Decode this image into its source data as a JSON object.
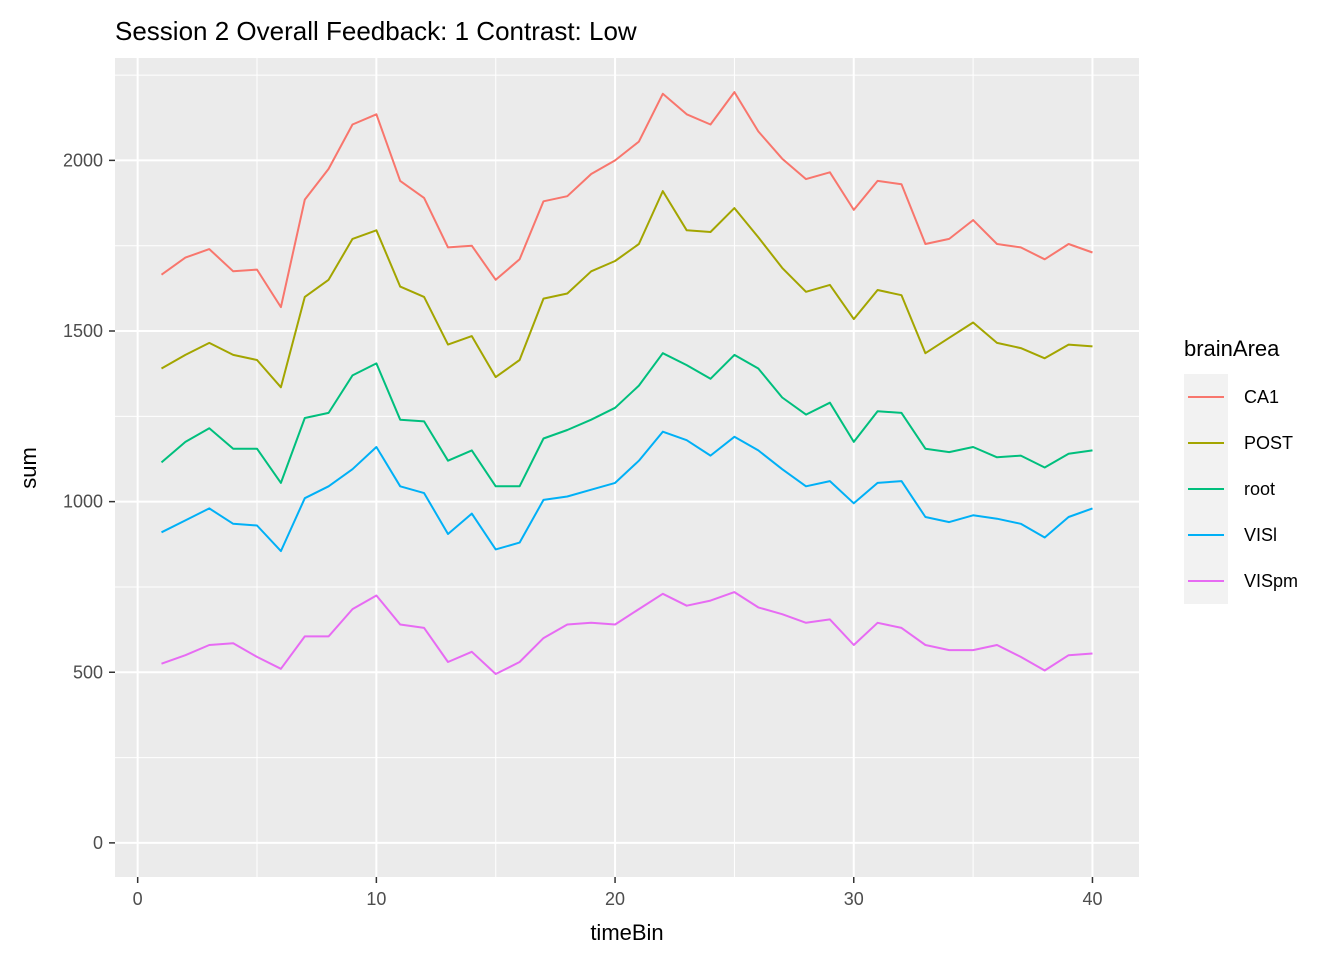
{
  "chart_data": {
    "type": "line",
    "title": "Session 2 Overall Feedback: 1 Contrast: Low",
    "xlabel": "timeBin",
    "ylabel": "sum",
    "xlim": [
      -0.95,
      41.95
    ],
    "ylim": [
      -100,
      2300
    ],
    "xticks": [
      0,
      10,
      20,
      30,
      40
    ],
    "yticks": [
      0,
      500,
      1000,
      1500,
      2000
    ],
    "grid": true,
    "legend": {
      "title": "brainArea",
      "position": "right"
    },
    "x": [
      1,
      2,
      3,
      4,
      5,
      6,
      7,
      8,
      9,
      10,
      11,
      12,
      13,
      14,
      15,
      16,
      17,
      18,
      19,
      20,
      21,
      22,
      23,
      24,
      25,
      26,
      27,
      28,
      29,
      30,
      31,
      32,
      33,
      34,
      35,
      36,
      37,
      38,
      39,
      40
    ],
    "series": [
      {
        "name": "CA1",
        "color": "#F8766D",
        "values": [
          1665,
          1715,
          1740,
          1675,
          1680,
          1570,
          1885,
          1975,
          2105,
          2135,
          1940,
          1890,
          1745,
          1750,
          1650,
          1710,
          1880,
          1895,
          1960,
          2000,
          2055,
          2195,
          2135,
          2105,
          2200,
          2085,
          2005,
          1945,
          1965,
          1855,
          1940,
          1930,
          1755,
          1770,
          1825,
          1755,
          1745,
          1710,
          1755,
          1730
        ]
      },
      {
        "name": "POST",
        "color": "#A3A500",
        "values": [
          1390,
          1430,
          1465,
          1430,
          1415,
          1335,
          1600,
          1650,
          1770,
          1795,
          1630,
          1600,
          1460,
          1485,
          1365,
          1415,
          1595,
          1610,
          1675,
          1705,
          1755,
          1910,
          1795,
          1790,
          1860,
          1775,
          1685,
          1615,
          1635,
          1535,
          1620,
          1605,
          1435,
          1480,
          1525,
          1465,
          1450,
          1420,
          1460,
          1455
        ]
      },
      {
        "name": "root",
        "color": "#00BF7D",
        "values": [
          1115,
          1175,
          1215,
          1155,
          1155,
          1055,
          1245,
          1260,
          1370,
          1405,
          1240,
          1235,
          1120,
          1150,
          1045,
          1045,
          1185,
          1210,
          1240,
          1275,
          1340,
          1435,
          1400,
          1360,
          1430,
          1390,
          1305,
          1255,
          1290,
          1175,
          1265,
          1260,
          1155,
          1145,
          1160,
          1130,
          1135,
          1100,
          1140,
          1150
        ]
      },
      {
        "name": "VISl",
        "color": "#00B0F6",
        "values": [
          910,
          945,
          980,
          935,
          930,
          855,
          1010,
          1045,
          1095,
          1160,
          1045,
          1025,
          905,
          965,
          860,
          880,
          1005,
          1015,
          1035,
          1055,
          1120,
          1205,
          1180,
          1135,
          1190,
          1150,
          1095,
          1045,
          1060,
          995,
          1055,
          1060,
          955,
          940,
          960,
          950,
          935,
          895,
          955,
          980
        ]
      },
      {
        "name": "VISpm",
        "color": "#E76BF3",
        "values": [
          525,
          550,
          580,
          585,
          545,
          510,
          605,
          605,
          685,
          725,
          640,
          630,
          530,
          560,
          495,
          530,
          600,
          640,
          645,
          640,
          685,
          730,
          695,
          710,
          735,
          690,
          670,
          645,
          655,
          580,
          645,
          630,
          580,
          565,
          565,
          580,
          545,
          505,
          550,
          555
        ]
      }
    ]
  }
}
